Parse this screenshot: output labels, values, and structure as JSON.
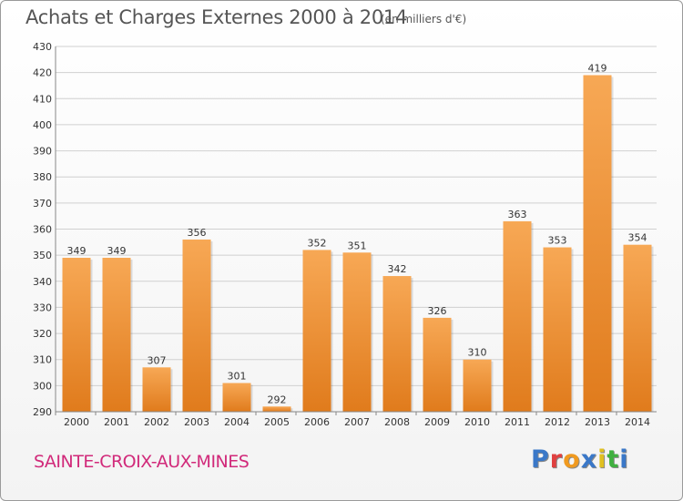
{
  "header": {
    "title": "Achats et Charges Externes 2000 à 2014",
    "subtitle": "(en milliers d'€)"
  },
  "footer": {
    "commune": "SAINTE-CROIX-AUX-MINES",
    "logo": "Proxiti"
  },
  "colors": {
    "bar_light": "#f7a855",
    "bar_dark": "#e07b1c",
    "grid": "#d0d0d0",
    "axis_text": "#333333",
    "commune": "#d12a7a",
    "logo_letters": [
      "#3a78c8",
      "#e04040",
      "#f09a20",
      "#3a78c8",
      "#e0c020",
      "#40b040",
      "#3a78c8"
    ]
  },
  "chart_data": {
    "type": "bar",
    "title": "Achats et Charges Externes 2000 à 2014",
    "subtitle": "(en milliers d'€)",
    "categories": [
      "2000",
      "2001",
      "2002",
      "2003",
      "2004",
      "2005",
      "2006",
      "2007",
      "2008",
      "2009",
      "2010",
      "2011",
      "2012",
      "2013",
      "2014"
    ],
    "values": [
      349,
      349,
      307,
      356,
      301,
      292,
      352,
      351,
      342,
      326,
      310,
      363,
      353,
      419,
      354
    ],
    "ylim": [
      290,
      430
    ],
    "yticks": [
      290,
      300,
      310,
      320,
      330,
      340,
      350,
      360,
      370,
      380,
      390,
      400,
      410,
      420,
      430
    ],
    "grid": true,
    "legend": "none"
  }
}
